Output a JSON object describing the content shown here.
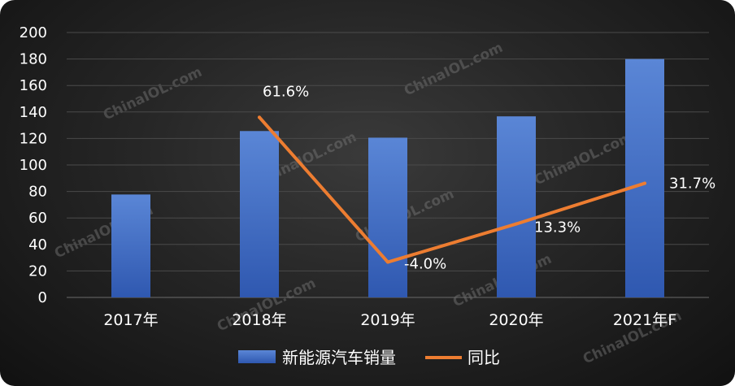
{
  "chart_data": {
    "type": "bar",
    "categories": [
      "2017年",
      "2018年",
      "2019年",
      "2020年",
      "2021年F"
    ],
    "series": [
      {
        "name": "新能源汽车销量",
        "type": "bar",
        "values": [
          77.7,
          125.6,
          120.6,
          136.7,
          180
        ]
      },
      {
        "name": "同比",
        "type": "line",
        "values": [
          null,
          61.6,
          -4.0,
          13.3,
          31.7
        ],
        "labels": [
          "",
          "61.6%",
          "-4.0%",
          "13.3%",
          "31.7%"
        ]
      }
    ],
    "ylim": [
      0,
      200
    ],
    "yticks": [
      0,
      20,
      40,
      60,
      80,
      100,
      120,
      140,
      160,
      180,
      200
    ],
    "y2lim": [
      -20,
      100
    ],
    "grid": true,
    "legend": "bottom",
    "colors": {
      "bar": "#4472c4",
      "line": "#ed7d31"
    }
  },
  "watermark": "ChinaIOL.com"
}
